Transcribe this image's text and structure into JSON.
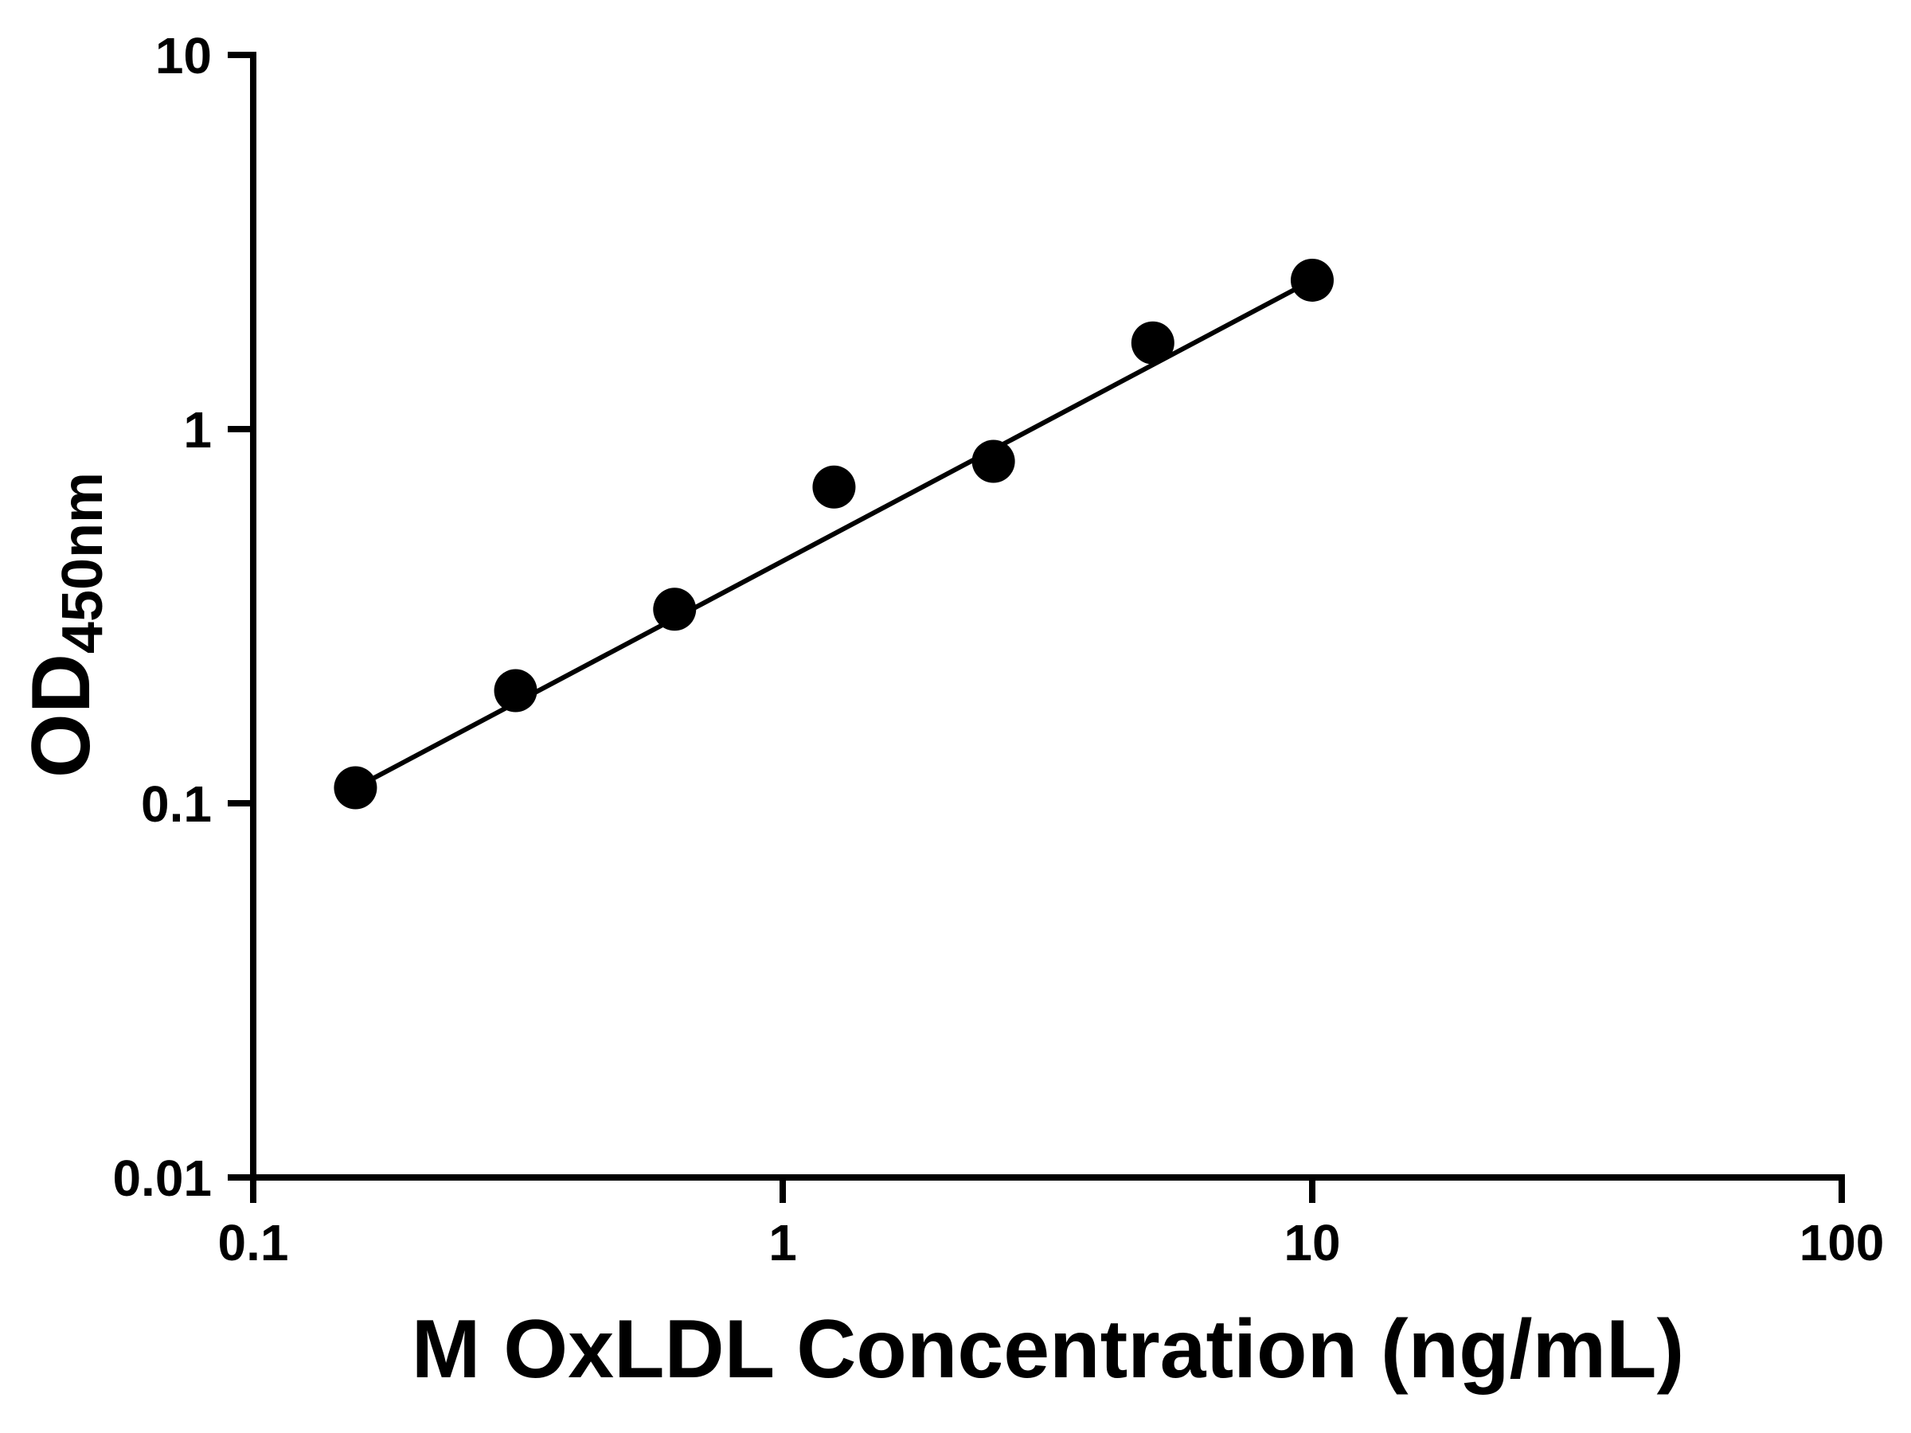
{
  "chart_data": {
    "type": "scatter",
    "title": "",
    "xlabel": "M OxLDL Concentration (ng/mL)",
    "ylabel_main": "OD",
    "ylabel_sub": "450nm",
    "xscale": "log",
    "yscale": "log",
    "xlim": [
      0.1,
      100
    ],
    "ylim": [
      0.01,
      10
    ],
    "x_ticks": [
      "0.1",
      "1",
      "10",
      "100"
    ],
    "y_ticks": [
      "0.01",
      "0.1",
      "1",
      "10"
    ],
    "x": [
      0.156,
      0.313,
      0.625,
      1.25,
      2.5,
      5,
      10
    ],
    "y": [
      0.11,
      0.2,
      0.33,
      0.7,
      0.82,
      1.7,
      2.5
    ],
    "fit_line": {
      "type": "power",
      "description": "straight line in log-log space from first to last data point"
    },
    "marker_color": "#000000",
    "line_color": "#000000",
    "background_color": "#ffffff",
    "grid": "off",
    "legend": "none"
  }
}
